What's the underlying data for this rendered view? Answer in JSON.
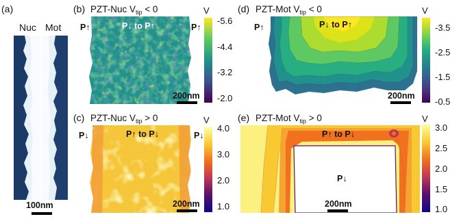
{
  "panel_a": {
    "label": "(a)",
    "strip_labels": [
      "Nuc",
      "Mot"
    ],
    "scale_bar": "100nm"
  },
  "panel_b": {
    "label": "(b)",
    "title_main": "PZT-Nuc V",
    "title_sub": "tip",
    "title_rel": " < 0",
    "unit": "V",
    "colorbar_ticks": [
      "-5.6",
      "-4.4",
      "-3.2",
      "-2.0"
    ],
    "annotations": [
      "P",
      "P",
      "to P",
      "P"
    ],
    "scale_bar": "200nm",
    "colorbar_colors": [
      "#fde725",
      "#5ec962",
      "#21918c",
      "#3b528b",
      "#440154"
    ]
  },
  "panel_c": {
    "label": "(c)",
    "title_main": "PZT-Nuc V",
    "title_sub": "tip",
    "title_rel": " > 0",
    "unit": "V",
    "colorbar_ticks": [
      "4.0",
      "3.0",
      "2.0",
      "1.0"
    ],
    "annotations": [
      "P",
      "P",
      "to P",
      "P"
    ],
    "scale_bar": "200nm",
    "colorbar_colors": [
      "#fcffa4",
      "#f8c932",
      "#f1711f",
      "#bc3754",
      "#57106e",
      "#0d0887"
    ]
  },
  "panel_d": {
    "label": "(d)",
    "title_main": "PZT-Mot V",
    "title_sub": "tip",
    "title_rel": " < 0",
    "unit": "V",
    "colorbar_ticks": [
      "-3.5",
      "-2.5",
      "-1.5",
      "-0.5"
    ],
    "annotations": [
      "P",
      "P",
      "to P"
    ],
    "scale_bar": "200nm"
  },
  "panel_e": {
    "label": "(e)",
    "title_main": "PZT-Mot V",
    "title_sub": "tip",
    "title_rel": " > 0",
    "unit": "V",
    "colorbar_ticks": [
      "3.0",
      "2.5",
      "2.0",
      "1.5",
      "1.0"
    ],
    "annotations": [
      "P",
      "to P",
      "P"
    ],
    "scale_bar": "200nm"
  }
}
